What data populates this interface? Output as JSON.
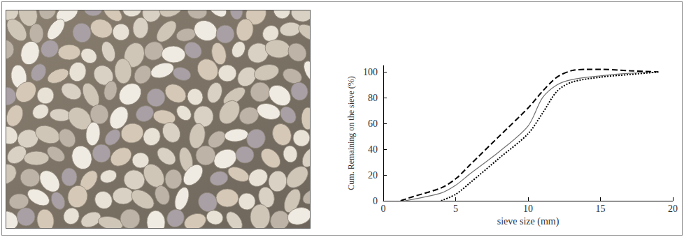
{
  "chart_data": {
    "type": "line",
    "xlabel": "sieve size (mm)",
    "ylabel": "Cum. Remaining on the sieve (%)",
    "xlim": [
      0,
      20
    ],
    "xticks": [
      0,
      5,
      10,
      15,
      20
    ],
    "ylim": [
      0,
      105
    ],
    "yticks": [
      0,
      20,
      40,
      60,
      80,
      100
    ],
    "grid": false,
    "series": [
      {
        "color": "#000000",
        "line_style": "dashed",
        "x": [
          1.2,
          2,
          4,
          5,
          6,
          8,
          10,
          11,
          12,
          13,
          14,
          15,
          17,
          19
        ],
        "values": [
          0,
          3,
          10,
          17,
          28,
          50,
          72,
          85,
          96,
          101,
          102,
          102,
          101,
          100
        ]
      },
      {
        "color": "#707070",
        "line_style": "solid",
        "x": [
          1.5,
          4,
          5,
          6,
          8,
          10,
          11,
          12,
          13,
          15,
          17,
          19
        ],
        "values": [
          0,
          6,
          12,
          21,
          38,
          58,
          80,
          90,
          94,
          97,
          99,
          100
        ]
      },
      {
        "color": "#000000",
        "line_style": "dotted",
        "x": [
          4,
          5,
          6,
          8,
          10,
          11,
          12,
          13,
          15,
          17,
          19
        ],
        "values": [
          0,
          5,
          14,
          33,
          52,
          68,
          85,
          92,
          96,
          98,
          100
        ]
      }
    ]
  }
}
